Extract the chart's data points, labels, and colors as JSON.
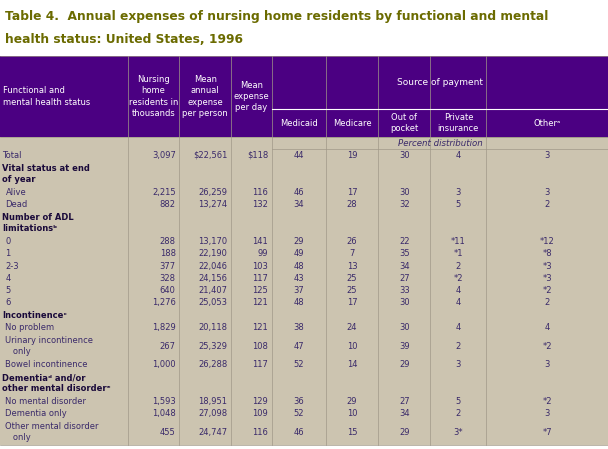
{
  "title_line1": "Table 4.  Annual expenses of nursing home residents by functional and mental",
  "title_line2": "health status: United States, 1996",
  "title_color": "#6b6b00",
  "title_bg": "#ffffff",
  "body_bg": "#ccc4b0",
  "header_bg": "#4b0082",
  "header_text_color": "#ffffff",
  "text_color": "#3a2a6a",
  "bold_color": "#1a0a3a",
  "col_headers_line1": [
    "Nursing\nhome\nresidents in\nthousands",
    "Mean\nannual\nexpense\nper person",
    "Mean\nexpense\nper day"
  ],
  "col_headers_payment": [
    "Medicaid",
    "Medicare",
    "Out of\npocket",
    "Private\ninsurance",
    "Otherᵃ"
  ],
  "source_label": "Source of payment",
  "percent_label": "Percent distribution",
  "row_label_col": "Functional and\nmental health status",
  "rows": [
    {
      "label": "Total",
      "bold": false,
      "indent": 0,
      "v": [
        "3,097",
        "$22,561",
        "$118",
        "44",
        "19",
        "30",
        "4",
        "3"
      ]
    },
    {
      "label": "Vital status at end\nof year",
      "bold": true,
      "indent": 0,
      "v": [
        "",
        "",
        "",
        "",
        "",
        "",
        "",
        ""
      ]
    },
    {
      "label": "Alive",
      "bold": false,
      "indent": 1,
      "v": [
        "2,215",
        "26,259",
        "116",
        "46",
        "17",
        "30",
        "3",
        "3"
      ]
    },
    {
      "label": "Dead",
      "bold": false,
      "indent": 1,
      "v": [
        "882",
        "13,274",
        "132",
        "34",
        "28",
        "32",
        "5",
        "2"
      ]
    },
    {
      "label": "Number of ADL\nlimitationsᵇ",
      "bold": true,
      "indent": 0,
      "v": [
        "",
        "",
        "",
        "",
        "",
        "",
        "",
        ""
      ]
    },
    {
      "label": "0",
      "bold": false,
      "indent": 1,
      "v": [
        "288",
        "13,170",
        "141",
        "29",
        "26",
        "22",
        "*11",
        "*12"
      ]
    },
    {
      "label": "1",
      "bold": false,
      "indent": 1,
      "v": [
        "188",
        "22,190",
        "99",
        "49",
        "7",
        "35",
        "*1",
        "*8"
      ]
    },
    {
      "label": "2-3",
      "bold": false,
      "indent": 1,
      "v": [
        "377",
        "22,046",
        "103",
        "48",
        "13",
        "34",
        "2",
        "*3"
      ]
    },
    {
      "label": "4",
      "bold": false,
      "indent": 1,
      "v": [
        "328",
        "24,156",
        "117",
        "43",
        "25",
        "27",
        "*2",
        "*3"
      ]
    },
    {
      "label": "5",
      "bold": false,
      "indent": 1,
      "v": [
        "640",
        "21,407",
        "125",
        "37",
        "25",
        "33",
        "4",
        "*2"
      ]
    },
    {
      "label": "6",
      "bold": false,
      "indent": 1,
      "v": [
        "1,276",
        "25,053",
        "121",
        "48",
        "17",
        "30",
        "4",
        "2"
      ]
    },
    {
      "label": "Incontinenceᶜ",
      "bold": true,
      "indent": 0,
      "v": [
        "",
        "",
        "",
        "",
        "",
        "",
        "",
        ""
      ]
    },
    {
      "label": "No problem",
      "bold": false,
      "indent": 1,
      "v": [
        "1,829",
        "20,118",
        "121",
        "38",
        "24",
        "30",
        "4",
        "4"
      ]
    },
    {
      "label": "Urinary incontinence\n   only",
      "bold": false,
      "indent": 1,
      "v": [
        "267",
        "25,329",
        "108",
        "47",
        "10",
        "39",
        "2",
        "*2"
      ]
    },
    {
      "label": "Bowel incontinence",
      "bold": false,
      "indent": 1,
      "v": [
        "1,000",
        "26,288",
        "117",
        "52",
        "14",
        "29",
        "3",
        "3"
      ]
    },
    {
      "label": "Dementiaᵈ and/or\nother mental disorderᵉ",
      "bold": true,
      "indent": 0,
      "v": [
        "",
        "",
        "",
        "",
        "",
        "",
        "",
        ""
      ]
    },
    {
      "label": "No mental disorder",
      "bold": false,
      "indent": 1,
      "v": [
        "1,593",
        "18,951",
        "129",
        "36",
        "29",
        "27",
        "5",
        "*2"
      ]
    },
    {
      "label": "Dementia only",
      "bold": false,
      "indent": 1,
      "v": [
        "1,048",
        "27,098",
        "109",
        "52",
        "10",
        "34",
        "2",
        "3"
      ]
    },
    {
      "label": "Other mental disorder\n   only",
      "bold": false,
      "indent": 1,
      "v": [
        "455",
        "24,747",
        "116",
        "46",
        "15",
        "29",
        "3*",
        "*7"
      ]
    }
  ]
}
